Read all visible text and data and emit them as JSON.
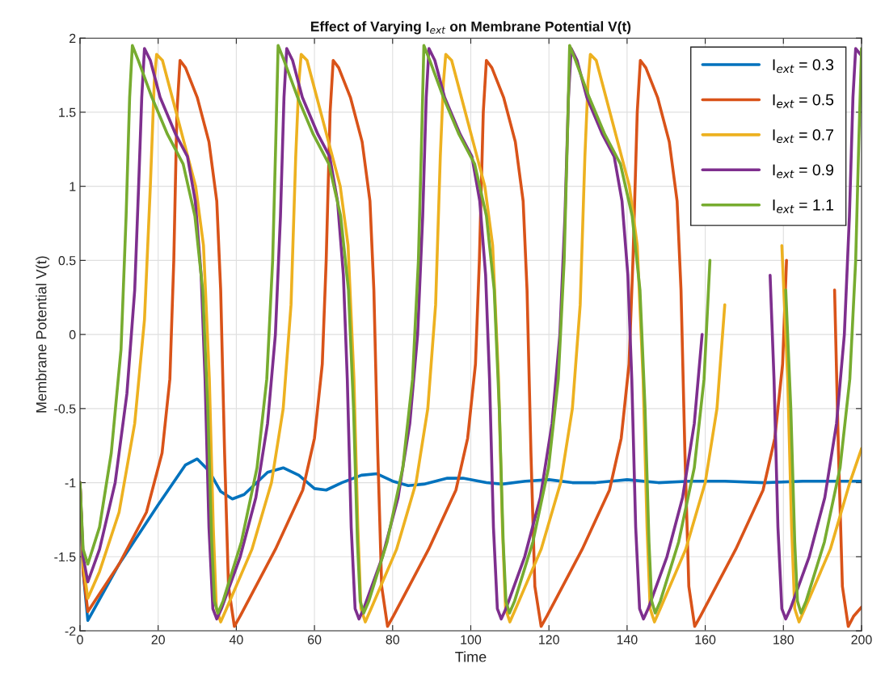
{
  "chart_data": {
    "type": "line",
    "title": "Effect of Varying I$_{ext}$ on Membrane Potential V(t)",
    "xlabel": "Time",
    "ylabel": "Membrane Potential V(t)",
    "xlim": [
      0,
      200
    ],
    "xticks": [
      0,
      20,
      40,
      60,
      80,
      100,
      120,
      140,
      160,
      180,
      200
    ],
    "ylim": [
      -2,
      2
    ],
    "yticks": [
      -2,
      -1.5,
      -1,
      -0.5,
      0,
      0.5,
      1,
      1.5,
      2
    ],
    "grid": true,
    "legend": "top right",
    "marker": "none",
    "line_style": "solid",
    "series": [
      {
        "name": "I$_{ext}$ = 0.3",
        "color": "#0072bd",
        "x": [
          0,
          0.8,
          2,
          10,
          20,
          27,
          30,
          33,
          36,
          39,
          42,
          48,
          52,
          56,
          60,
          63,
          67,
          72,
          76,
          80,
          84,
          88,
          94,
          98,
          104,
          108,
          114,
          120,
          126,
          132,
          140,
          148,
          156,
          165,
          175,
          185,
          200
        ],
        "values": [
          -1,
          -1.6,
          -1.93,
          -1.55,
          -1.15,
          -0.88,
          -0.84,
          -0.92,
          -1.06,
          -1.11,
          -1.08,
          -0.93,
          -0.9,
          -0.95,
          -1.04,
          -1.05,
          -1.0,
          -0.95,
          -0.94,
          -0.99,
          -1.02,
          -1.01,
          -0.97,
          -0.97,
          -1.0,
          -1.01,
          -0.99,
          -0.98,
          -1.0,
          -1.0,
          -0.98,
          -1.0,
          -0.99,
          -0.99,
          -1.0,
          -0.99,
          -0.99
        ]
      },
      {
        "name": "I$_{ext}$ = 0.5",
        "color": "#d95319",
        "x": [
          0,
          0.8,
          2,
          10,
          17,
          21,
          23,
          24,
          24.8,
          25.6,
          27,
          30,
          33,
          35,
          36,
          37,
          38,
          39.5,
          41,
          50,
          57,
          60,
          62,
          63,
          64,
          64.8,
          66.2,
          69.2,
          72.2,
          74.2,
          75.2,
          76.2,
          77.2,
          78.7,
          80.2,
          89.2,
          96.2,
          99.2,
          101.2,
          102.2,
          103.2,
          104,
          105.4,
          108.4,
          111.4,
          113.4,
          114.4,
          115.4,
          116.4,
          118,
          119.5,
          128.5,
          135.5,
          138.5,
          140.5,
          141.5,
          142.6,
          143.4,
          144.8,
          147.8,
          150.8,
          152.8,
          153.8,
          154.8,
          155.8,
          157.3,
          158.8,
          167.8,
          174.8,
          177.8,
          179.8,
          180.8,
          181.9,
          182.7,
          184.1,
          187.1,
          190.1,
          192.1,
          193.1,
          194.1,
          195.1,
          196.6,
          198,
          200
        ],
        "values": [
          -1,
          -1.6,
          -1.87,
          -1.55,
          -1.2,
          -0.8,
          -0.3,
          0.5,
          1.5,
          1.85,
          1.8,
          1.6,
          1.3,
          0.9,
          0.3,
          -0.8,
          -1.7,
          -1.97,
          -1.9,
          -1.45,
          -1.05,
          -0.7,
          -0.2,
          0.5,
          1.5,
          1.85,
          1.8,
          1.6,
          1.3,
          0.9,
          0.3,
          -0.8,
          -1.7,
          -1.97,
          -1.9,
          -1.45,
          -1.05,
          -0.7,
          -0.2,
          0.5,
          1.5,
          1.85,
          1.8,
          1.6,
          1.3,
          0.9,
          0.3,
          -0.8,
          -1.7,
          -1.97,
          -1.9,
          -1.45,
          -1.05,
          -0.7,
          -0.2,
          0.5,
          1.5,
          1.85,
          1.8,
          1.6,
          1.3,
          0.9,
          0.3,
          -0.8,
          -1.7,
          -1.97,
          -1.9,
          -1.45,
          -1.05,
          -0.7,
          -0.2,
          0.5,
          null,
          null,
          null,
          null,
          null,
          null,
          0.3,
          -0.8,
          -1.7,
          -1.97,
          -1.9,
          -1.84
        ]
      },
      {
        "name": "I$_{ext}$ = 0.7",
        "color": "#edb120",
        "x": [
          0,
          0.8,
          2,
          5,
          10,
          14,
          16.5,
          18,
          19,
          19.6,
          21.1,
          23.6,
          26.6,
          29.6,
          31.6,
          33.1,
          34.1,
          34.9,
          36,
          37.5,
          44,
          49,
          52,
          54,
          55.2,
          56,
          56.6,
          58.1,
          60.6,
          63.6,
          66.6,
          68.6,
          70.1,
          71.1,
          71.9,
          73,
          74.5,
          81,
          86,
          89,
          91,
          92.2,
          93,
          93.6,
          95.1,
          97.6,
          100.6,
          103.6,
          105.6,
          107.1,
          108.1,
          108.9,
          110,
          111.5,
          118,
          123,
          126,
          128,
          129.2,
          130,
          130.6,
          132.1,
          134.6,
          137.6,
          140.6,
          142.6,
          144.1,
          145.1,
          145.9,
          147,
          148.5,
          155,
          160,
          163,
          165,
          166.2,
          167,
          167.6,
          169.1,
          171.6,
          174.6,
          177.6,
          179.6,
          181.1,
          182.1,
          182.9,
          184,
          185.5,
          192,
          197,
          200
        ],
        "values": [
          -1,
          -1.55,
          -1.78,
          -1.6,
          -1.2,
          -0.6,
          0.1,
          1.0,
          1.7,
          1.89,
          1.85,
          1.6,
          1.3,
          1.0,
          0.6,
          -0.3,
          -1.3,
          -1.85,
          -1.94,
          -1.85,
          -1.45,
          -1.0,
          -0.5,
          0.2,
          1.2,
          1.7,
          1.89,
          1.85,
          1.6,
          1.3,
          1.0,
          0.6,
          -0.3,
          -1.3,
          -1.85,
          -1.94,
          -1.85,
          -1.45,
          -1.0,
          -0.5,
          0.2,
          1.2,
          1.7,
          1.89,
          1.85,
          1.6,
          1.3,
          1.0,
          0.6,
          -0.3,
          -1.3,
          -1.85,
          -1.94,
          -1.85,
          -1.45,
          -1.0,
          -0.5,
          0.2,
          1.2,
          1.7,
          1.89,
          1.85,
          1.6,
          1.3,
          1.0,
          0.6,
          -0.3,
          -1.3,
          -1.85,
          -1.94,
          -1.85,
          -1.45,
          -1.0,
          -0.5,
          0.2,
          null,
          null,
          null,
          null,
          null,
          null,
          null,
          0.6,
          -0.3,
          -1.3,
          -1.85,
          -1.94,
          -1.85,
          -1.45,
          -1.0,
          -0.77
        ]
      },
      {
        "name": "I$_{ext}$ = 0.9",
        "color": "#7e2f8e",
        "x": [
          0,
          0.8,
          2,
          5,
          9,
          12,
          14,
          15,
          15.8,
          16.5,
          18,
          20.5,
          24.5,
          27.5,
          29.5,
          31,
          32,
          33,
          34,
          35,
          36.2,
          41,
          45,
          48,
          50,
          51.3,
          52.2,
          52.9,
          54.4,
          56.9,
          60.9,
          63.9,
          65.9,
          67.4,
          68.4,
          69.4,
          70.4,
          71.4,
          72.6,
          77.4,
          81.4,
          84.4,
          86.4,
          87.7,
          88.6,
          89.3,
          90.8,
          93.3,
          97.3,
          100.3,
          102.3,
          103.8,
          104.8,
          105.8,
          106.8,
          107.8,
          109,
          113.8,
          117.8,
          120.8,
          122.8,
          124.1,
          125,
          125.7,
          127.2,
          129.7,
          133.7,
          136.7,
          138.7,
          140.2,
          141.2,
          142.2,
          143.2,
          144.2,
          145.4,
          150.2,
          154.2,
          157.2,
          159.2,
          160.5,
          161.4,
          162.1,
          163.6,
          166.1,
          170.1,
          173.1,
          175.1,
          176.6,
          177.6,
          178.6,
          179.6,
          180.6,
          181.8,
          186.6,
          190.6,
          193.6,
          195.6,
          196.9,
          197.8,
          198.5,
          200
        ],
        "values": [
          -1,
          -1.5,
          -1.67,
          -1.45,
          -1.0,
          -0.4,
          0.3,
          1.0,
          1.6,
          1.93,
          1.85,
          1.6,
          1.35,
          1.2,
          0.9,
          0.4,
          -0.3,
          -1.3,
          -1.85,
          -1.92,
          -1.85,
          -1.5,
          -1.1,
          -0.6,
          0,
          0.8,
          1.6,
          1.93,
          1.85,
          1.6,
          1.35,
          1.2,
          0.9,
          0.4,
          -0.3,
          -1.3,
          -1.85,
          -1.92,
          -1.85,
          -1.5,
          -1.1,
          -0.6,
          0,
          0.8,
          1.6,
          1.93,
          1.85,
          1.6,
          1.35,
          1.2,
          0.9,
          0.4,
          -0.3,
          -1.3,
          -1.85,
          -1.92,
          -1.85,
          -1.5,
          -1.1,
          -0.6,
          0,
          0.8,
          1.6,
          1.93,
          1.85,
          1.6,
          1.35,
          1.2,
          0.9,
          0.4,
          -0.3,
          -1.3,
          -1.85,
          -1.92,
          -1.85,
          -1.5,
          -1.1,
          -0.6,
          0,
          null,
          null,
          null,
          null,
          null,
          null,
          null,
          null,
          0.4,
          -0.3,
          -1.3,
          -1.85,
          -1.92,
          -1.85,
          -1.5,
          -1.1,
          -0.6,
          0,
          0.8,
          1.6,
          1.93,
          1.88
        ]
      },
      {
        "name": "I$_{ext}$ = 1.1",
        "color": "#77ac30",
        "x": [
          0,
          0.8,
          2,
          5,
          8,
          10.5,
          11.8,
          12.7,
          13.4,
          14.9,
          18.4,
          22.4,
          26.4,
          29.4,
          31.4,
          32.7,
          33.7,
          34.4,
          35.3,
          36.6,
          41.3,
          45.3,
          47.8,
          49.3,
          50.1,
          50.7,
          52.2,
          55.7,
          59.7,
          63.7,
          66.7,
          68.7,
          70,
          71,
          71.7,
          72.6,
          73.9,
          78.6,
          82.6,
          85.1,
          86.6,
          87.4,
          88,
          89.5,
          93,
          97,
          101,
          104,
          106,
          107.3,
          108.3,
          109,
          109.9,
          111.2,
          115.9,
          119.9,
          122.4,
          123.9,
          124.7,
          125.3,
          126.8,
          130.3,
          134.3,
          138.3,
          141.3,
          143.3,
          144.6,
          145.6,
          146.3,
          147.2,
          148.5,
          153.2,
          157.2,
          159.7,
          161.2,
          162,
          162.6,
          164.1,
          167.6,
          171.6,
          175.6,
          178.6,
          180.6,
          181.9,
          182.9,
          183.6,
          184.5,
          185.8,
          190.5,
          194.5,
          197,
          198.5,
          199.3,
          200
        ],
        "values": [
          -1,
          -1.45,
          -1.55,
          -1.3,
          -0.8,
          -0.1,
          0.8,
          1.6,
          1.95,
          1.85,
          1.6,
          1.35,
          1.15,
          0.8,
          0.3,
          -0.5,
          -1.4,
          -1.8,
          -1.88,
          -1.8,
          -1.4,
          -0.9,
          -0.3,
          0.5,
          1.3,
          1.95,
          1.85,
          1.6,
          1.35,
          1.15,
          0.8,
          0.3,
          -0.5,
          -1.4,
          -1.8,
          -1.88,
          -1.8,
          -1.4,
          -0.9,
          -0.3,
          0.5,
          1.3,
          1.95,
          1.85,
          1.6,
          1.35,
          1.15,
          0.8,
          0.3,
          -0.5,
          -1.4,
          -1.8,
          -1.88,
          -1.8,
          -1.4,
          -0.9,
          -0.3,
          0.5,
          1.3,
          1.95,
          1.85,
          1.6,
          1.35,
          1.15,
          0.8,
          0.3,
          -0.5,
          -1.4,
          -1.8,
          -1.88,
          -1.8,
          -1.4,
          -0.9,
          -0.3,
          0.5,
          null,
          null,
          null,
          null,
          null,
          null,
          null,
          0.3,
          -0.5,
          -1.4,
          -1.8,
          -1.88,
          -1.8,
          -1.4,
          -0.9,
          -0.3,
          0.5,
          1.3,
          1.93
        ]
      }
    ]
  }
}
